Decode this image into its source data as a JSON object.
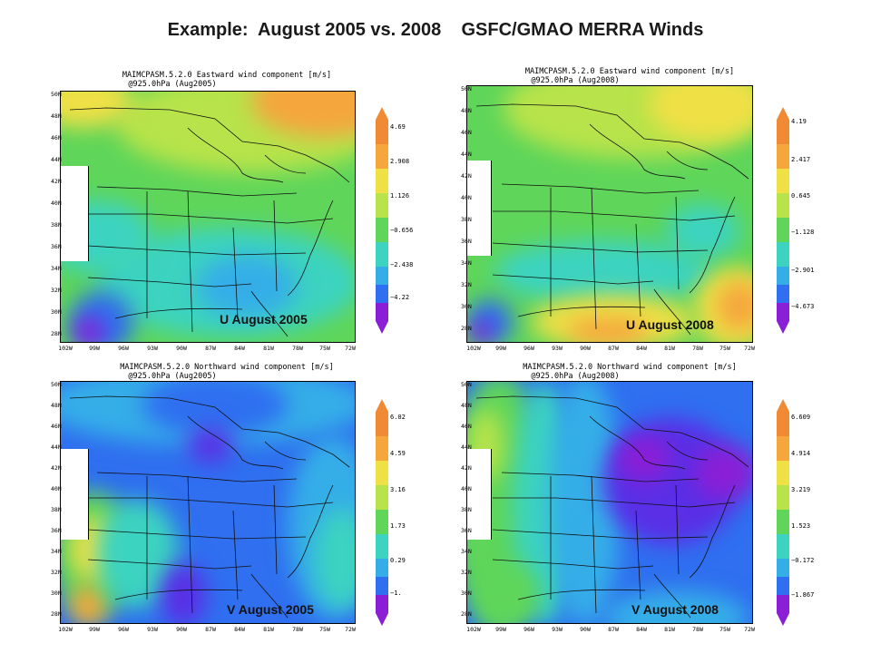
{
  "slide": {
    "title": "Example:  August 2005 vs. 2008    GSFC/GMAO MERRA Winds"
  },
  "axes": {
    "lat_labels": [
      "50N",
      "48N",
      "46N",
      "44N",
      "42N",
      "40N",
      "38N",
      "36N",
      "34N",
      "32N",
      "30N",
      "28N"
    ],
    "lon_labels": [
      "102W",
      "99W",
      "96W",
      "93W",
      "90W",
      "87W",
      "84W",
      "81W",
      "78W",
      "75W",
      "72W"
    ]
  },
  "colors": {
    "purple": "#8a1fd6",
    "violet": "#5a2fe6",
    "blue": "#2f6ff0",
    "lightblue": "#35aee8",
    "teal": "#3cd3c0",
    "green": "#5fd65a",
    "yellowgreen": "#b8e34a",
    "yellow": "#efe046",
    "orange": "#f5a63d",
    "darkorange": "#f08a35"
  },
  "panels": [
    {
      "id": "u2005",
      "title_line1": "MAIMCPASM.5.2.0 Eastward wind component [m/s]",
      "title_line2": "@925.0hPa (Aug2005)",
      "caption": "U  August 2005",
      "colorbar": [
        "4.69",
        "2.908",
        "1.126",
        "−0.656",
        "−2.438",
        "−4.22"
      ]
    },
    {
      "id": "u2008",
      "title_line1": "MAIMCPASM.5.2.0 Eastward wind component [m/s]",
      "title_line2": "@925.0hPa (Aug2008)",
      "caption": "U  August 2008",
      "colorbar": [
        "4.19",
        "2.417",
        "0.645",
        "−1.128",
        "−2.901",
        "−4.673"
      ]
    },
    {
      "id": "v2005",
      "title_line1": "MAIMCPASM.5.2.0 Northward wind component [m/s]",
      "title_line2": "@925.0hPa (Aug2005)",
      "caption": "V  August 2005",
      "colorbar": [
        "6.02",
        "4.59",
        "3.16",
        "1.73",
        "0.29",
        "−1."
      ]
    },
    {
      "id": "v2008",
      "title_line1": "MAIMCPASM.5.2.0 Northward wind component [m/s]",
      "title_line2": "@925.0hPa (Aug2008)",
      "caption": "V  August 2008",
      "colorbar": [
        "6.609",
        "4.914",
        "3.219",
        "1.523",
        "−0.172",
        "−1.867"
      ]
    }
  ]
}
